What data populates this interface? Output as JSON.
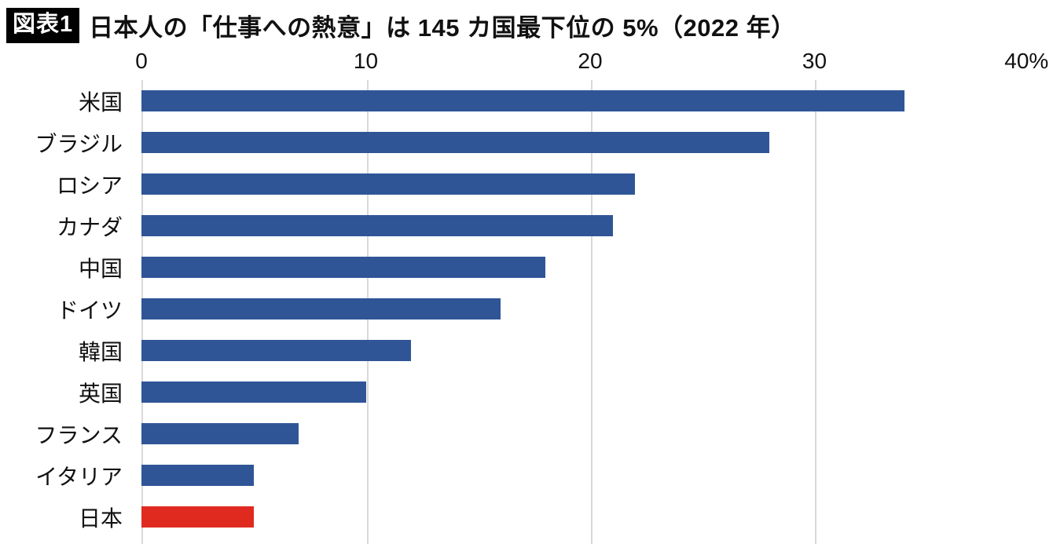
{
  "header": {
    "badge": "図表1",
    "title": "日本人の「仕事への熱意」は 145 カ国最下位の 5%（2022 年）"
  },
  "chart_data": {
    "type": "bar",
    "orientation": "horizontal",
    "title": "日本人の「仕事への熱意」は 145 カ国最下位の 5%（2022 年）",
    "categories": [
      "米国",
      "ブラジル",
      "ロシア",
      "カナダ",
      "中国",
      "ドイツ",
      "韓国",
      "英国",
      "フランス",
      "イタリア",
      "日本"
    ],
    "values": [
      34,
      28,
      22,
      21,
      18,
      16,
      12,
      10,
      7,
      5,
      5
    ],
    "unit": "%",
    "xlabel": "",
    "ylabel": "",
    "xlim": [
      0,
      40
    ],
    "x_tick_values": [
      0,
      10,
      20,
      30,
      40
    ],
    "x_tick_labels": [
      "0",
      "10",
      "20",
      "30",
      "40%"
    ],
    "grid": true,
    "axis_position": "top",
    "legend": "none",
    "bar_color": "#2f5597",
    "highlight_color": "#e02a20",
    "highlight_category": "日本"
  }
}
